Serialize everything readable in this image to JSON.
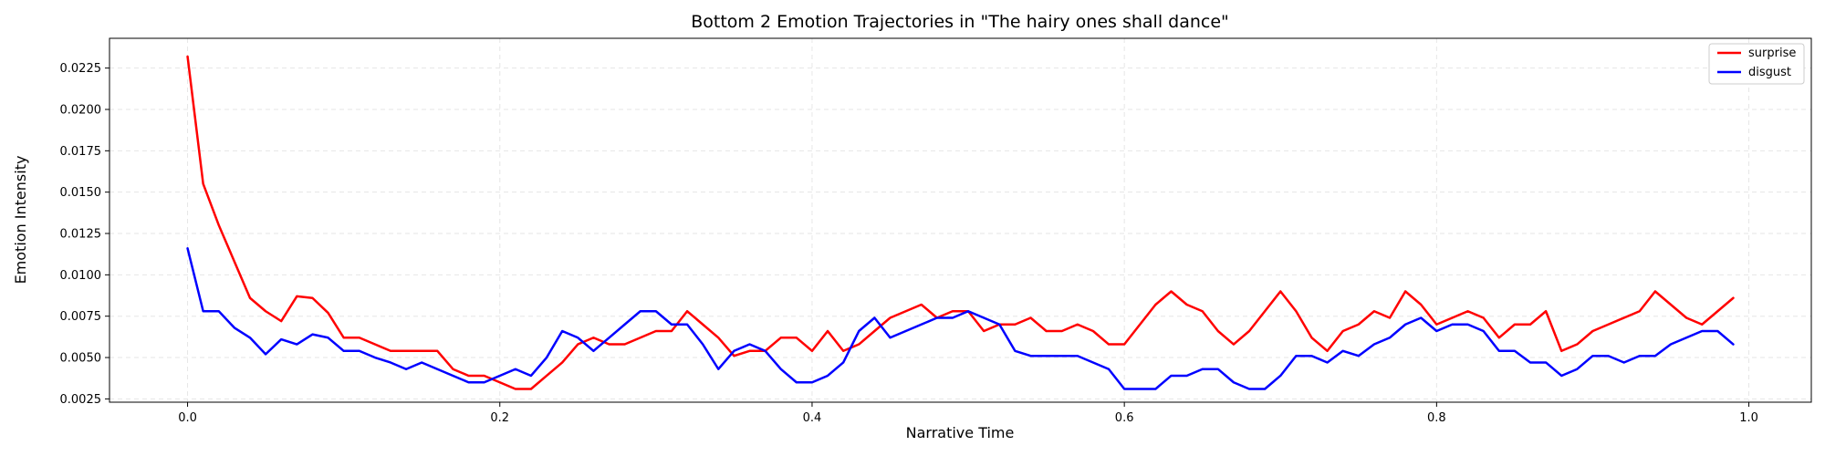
{
  "chart_data": {
    "type": "line",
    "title": "Bottom 2 Emotion Trajectories in \"The hairy ones shall dance\"",
    "xlabel": "Narrative Time",
    "ylabel": "Emotion Intensity",
    "xlim": [
      -0.05,
      1.04
    ],
    "ylim": [
      0.0023,
      0.0243
    ],
    "x_ticks": [
      0.0,
      0.2,
      0.4,
      0.6,
      0.8,
      1.0
    ],
    "x_tick_labels": [
      "0.0",
      "0.2",
      "0.4",
      "0.6",
      "0.8",
      "1.0"
    ],
    "y_ticks": [
      0.0025,
      0.005,
      0.0075,
      0.01,
      0.0125,
      0.015,
      0.0175,
      0.02,
      0.0225
    ],
    "y_tick_labels": [
      "0.0025",
      "0.0050",
      "0.0075",
      "0.0100",
      "0.0125",
      "0.0150",
      "0.0175",
      "0.0200",
      "0.0225"
    ],
    "grid": true,
    "legend_position": "top-right",
    "x": [
      0.0,
      0.01,
      0.02,
      0.03,
      0.04,
      0.05,
      0.06,
      0.07,
      0.08,
      0.09,
      0.1,
      0.11,
      0.12,
      0.13,
      0.14,
      0.15,
      0.16,
      0.17,
      0.18,
      0.19,
      0.2,
      0.21,
      0.22,
      0.23,
      0.24,
      0.25,
      0.26,
      0.27,
      0.28,
      0.29,
      0.3,
      0.31,
      0.32,
      0.33,
      0.34,
      0.35,
      0.36,
      0.37,
      0.38,
      0.39,
      0.4,
      0.41,
      0.42,
      0.43,
      0.44,
      0.45,
      0.46,
      0.47,
      0.48,
      0.49,
      0.5,
      0.51,
      0.52,
      0.53,
      0.54,
      0.55,
      0.56,
      0.57,
      0.58,
      0.59,
      0.6,
      0.61,
      0.62,
      0.63,
      0.64,
      0.65,
      0.66,
      0.67,
      0.68,
      0.69,
      0.7,
      0.71,
      0.72,
      0.73,
      0.74,
      0.75,
      0.76,
      0.77,
      0.78,
      0.79,
      0.8,
      0.81,
      0.82,
      0.83,
      0.84,
      0.85,
      0.86,
      0.87,
      0.88,
      0.89,
      0.9,
      0.91,
      0.92,
      0.93,
      0.94,
      0.95,
      0.96,
      0.97,
      0.98,
      0.99
    ],
    "series": [
      {
        "name": "surprise",
        "color": "#ff0000",
        "values": [
          0.0232,
          0.0155,
          0.013,
          0.0108,
          0.0086,
          0.0078,
          0.0072,
          0.0087,
          0.0086,
          0.0077,
          0.0062,
          0.0062,
          0.0058,
          0.0054,
          0.0054,
          0.0054,
          0.0054,
          0.0043,
          0.0039,
          0.0039,
          0.0035,
          0.0031,
          0.0031,
          0.0039,
          0.0047,
          0.0058,
          0.0062,
          0.0058,
          0.0058,
          0.0062,
          0.0066,
          0.0066,
          0.0078,
          0.007,
          0.0062,
          0.0051,
          0.0054,
          0.0054,
          0.0062,
          0.0062,
          0.0054,
          0.0066,
          0.0054,
          0.0058,
          0.0066,
          0.0074,
          0.0078,
          0.0082,
          0.0074,
          0.0078,
          0.0078,
          0.0066,
          0.007,
          0.007,
          0.0074,
          0.0066,
          0.0066,
          0.007,
          0.0066,
          0.0058,
          0.0058,
          0.007,
          0.0082,
          0.009,
          0.0082,
          0.0078,
          0.0066,
          0.0058,
          0.0066,
          0.0078,
          0.009,
          0.0078,
          0.0062,
          0.0054,
          0.0066,
          0.007,
          0.0078,
          0.0074,
          0.009,
          0.0082,
          0.007,
          0.0074,
          0.0078,
          0.0074,
          0.0062,
          0.007,
          0.007,
          0.0078,
          0.0054,
          0.0058,
          0.0066,
          0.007,
          0.0074,
          0.0078,
          0.009,
          0.0082,
          0.0074,
          0.007,
          0.0078,
          0.0086
        ]
      },
      {
        "name": "disgust",
        "color": "#0000ff",
        "values": [
          0.0116,
          0.0078,
          0.0078,
          0.0068,
          0.0062,
          0.0052,
          0.0061,
          0.0058,
          0.0064,
          0.0062,
          0.0054,
          0.0054,
          0.005,
          0.0047,
          0.0043,
          0.0047,
          0.0043,
          0.0039,
          0.0035,
          0.0035,
          0.0039,
          0.0043,
          0.0039,
          0.005,
          0.0066,
          0.0062,
          0.0054,
          0.0062,
          0.007,
          0.0078,
          0.0078,
          0.007,
          0.007,
          0.0058,
          0.0043,
          0.0054,
          0.0058,
          0.0054,
          0.0043,
          0.0035,
          0.0035,
          0.0039,
          0.0047,
          0.0066,
          0.0074,
          0.0062,
          0.0066,
          0.007,
          0.0074,
          0.0074,
          0.0078,
          0.0074,
          0.007,
          0.0054,
          0.0051,
          0.0051,
          0.0051,
          0.0051,
          0.0047,
          0.0043,
          0.0031,
          0.0031,
          0.0031,
          0.0039,
          0.0039,
          0.0043,
          0.0043,
          0.0035,
          0.0031,
          0.0031,
          0.0039,
          0.0051,
          0.0051,
          0.0047,
          0.0054,
          0.0051,
          0.0058,
          0.0062,
          0.007,
          0.0074,
          0.0066,
          0.007,
          0.007,
          0.0066,
          0.0054,
          0.0054,
          0.0047,
          0.0047,
          0.0039,
          0.0043,
          0.0051,
          0.0051,
          0.0047,
          0.0051,
          0.0051,
          0.0058,
          0.0062,
          0.0066,
          0.0066,
          0.0058
        ]
      }
    ]
  }
}
